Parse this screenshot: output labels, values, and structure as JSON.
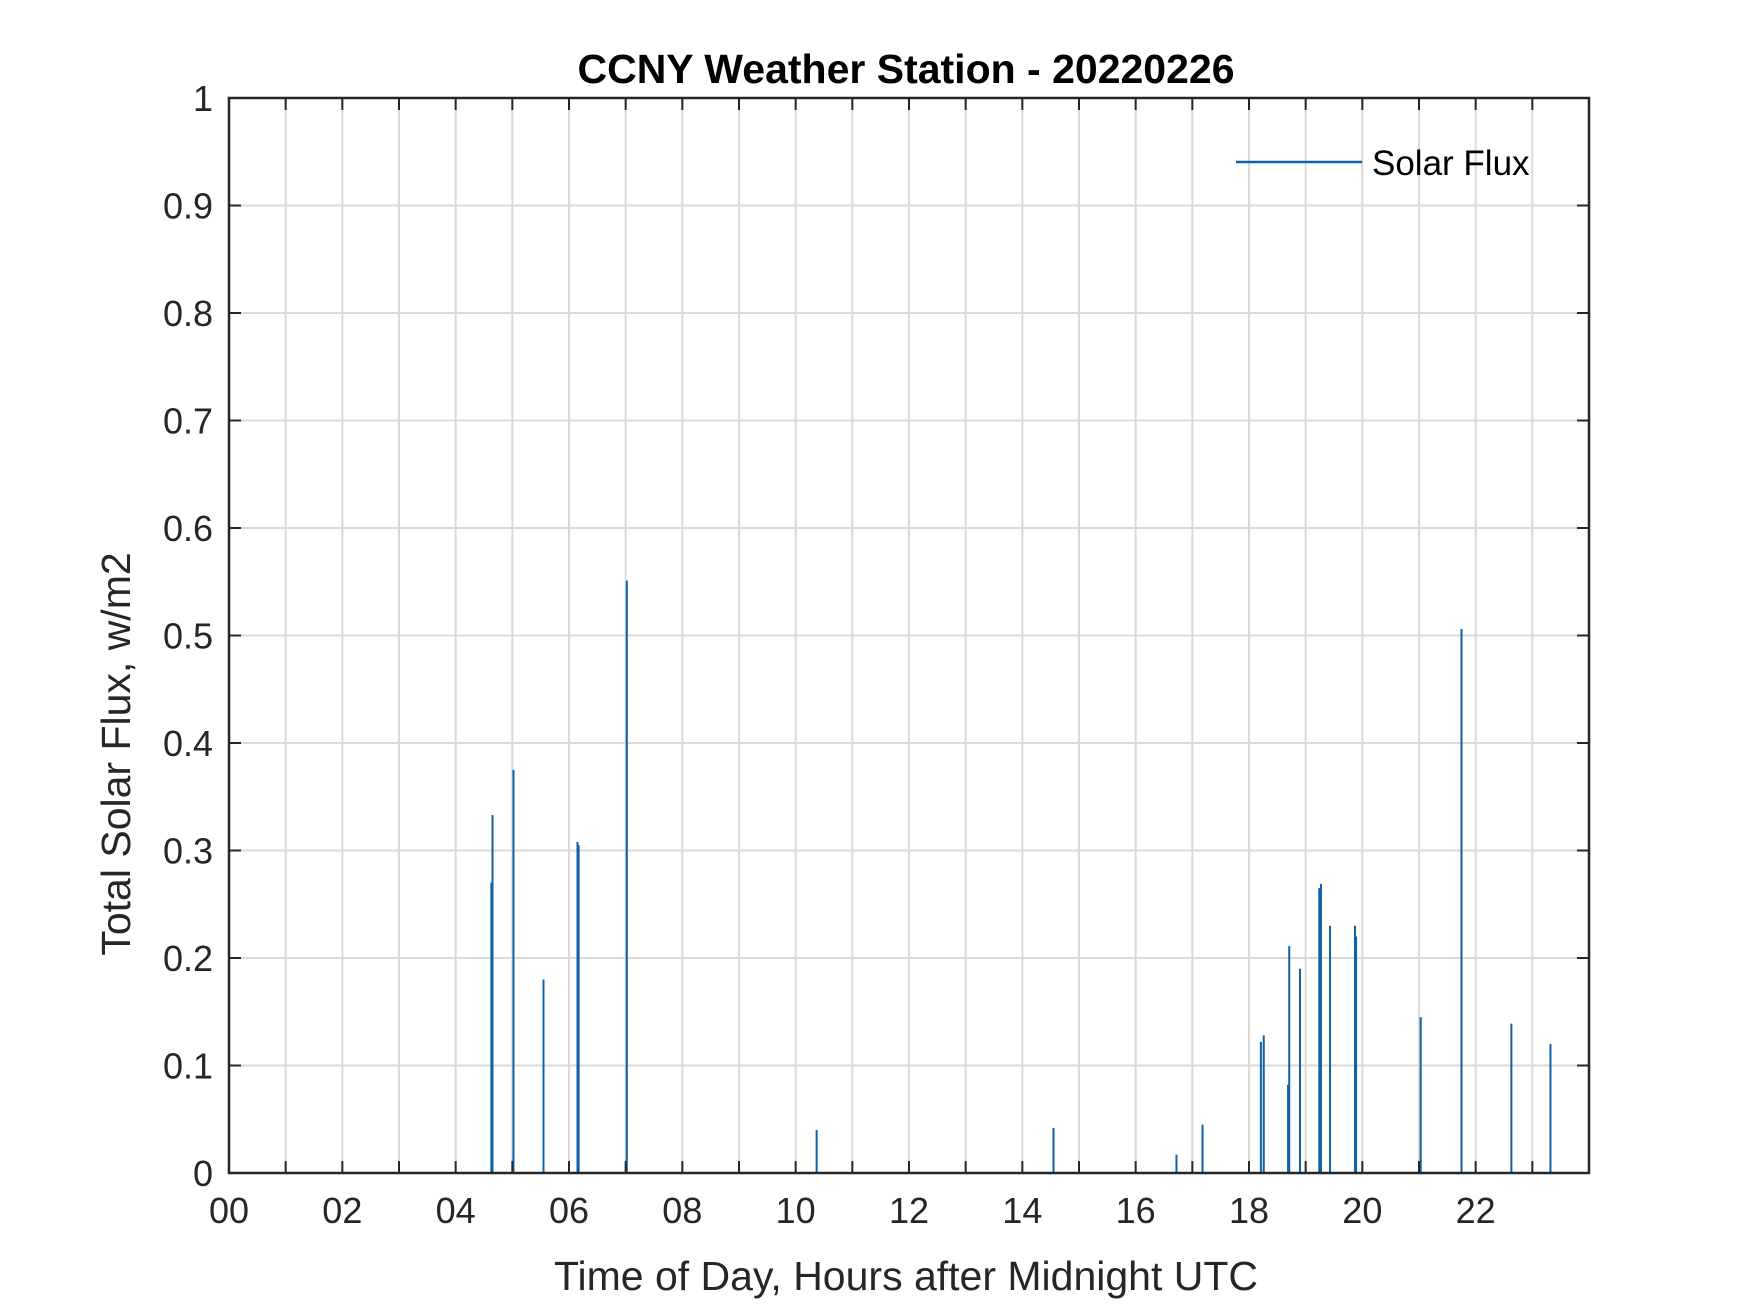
{
  "chart_data": {
    "type": "line",
    "title": "CCNY Weather Station - 20220226",
    "xlabel": "Time of Day, Hours after Midnight UTC",
    "ylabel": "Total Solar Flux, w/m2",
    "xlim": [
      0,
      24
    ],
    "ylim": [
      0,
      1
    ],
    "xticks": [
      0,
      2,
      4,
      6,
      8,
      10,
      12,
      14,
      16,
      18,
      20,
      22
    ],
    "xtick_labels": [
      "00",
      "02",
      "04",
      "06",
      "08",
      "10",
      "12",
      "14",
      "16",
      "18",
      "20",
      "22"
    ],
    "yticks": [
      0,
      0.1,
      0.2,
      0.3,
      0.4,
      0.5,
      0.6,
      0.7,
      0.8,
      0.9,
      1
    ],
    "ytick_labels": [
      "0",
      "0.1",
      "0.2",
      "0.3",
      "0.4",
      "0.5",
      "0.6",
      "0.7",
      "0.8",
      "0.9",
      "1"
    ],
    "grid": true,
    "legend": {
      "position": "top-right",
      "entries": [
        "Solar Flux"
      ]
    },
    "series": [
      {
        "name": "Solar Flux",
        "color": "#0f62a6",
        "x": [
          4.63,
          4.65,
          5.02,
          5.55,
          6.15,
          6.17,
          7.02,
          10.37,
          14.55,
          16.72,
          17.18,
          18.21,
          18.26,
          18.69,
          18.71,
          18.9,
          19.24,
          19.27,
          19.43,
          19.87,
          19.89,
          21.03,
          21.75,
          22.63,
          23.32
        ],
        "y": [
          0.27,
          0.333,
          0.375,
          0.18,
          0.308,
          0.305,
          0.551,
          0.04,
          0.042,
          0.017,
          0.045,
          0.122,
          0.128,
          0.082,
          0.211,
          0.19,
          0.265,
          0.269,
          0.23,
          0.23,
          0.22,
          0.145,
          0.506,
          0.139,
          0.12
        ]
      }
    ]
  }
}
